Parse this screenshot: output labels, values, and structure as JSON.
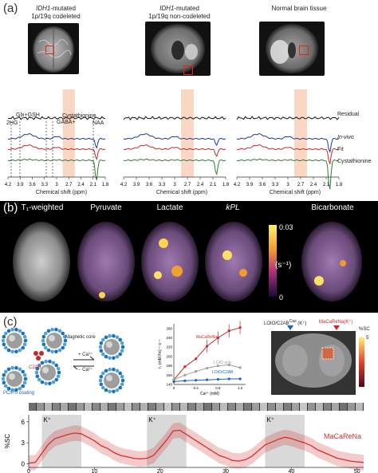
{
  "panel_labels": {
    "a": "(a)",
    "b": "(b)",
    "c": "(c)"
  },
  "a": {
    "titles": [
      {
        "line1_italic": "IDH1",
        "line1_rest": "-mutated",
        "line2": "1p/19q codeleted"
      },
      {
        "line1_italic": "IDH1",
        "line1_rest": "-mutated",
        "line2": "1p/19q non-codeleted"
      },
      {
        "line1_italic": "",
        "line1_rest": "Normal brain tissue",
        "line2": ""
      }
    ],
    "peak_labels": {
      "glx_gsh": "Glx+GSH",
      "cystathionine": "Cystathionine",
      "gaba": "GABA+",
      "twohg": "2HG",
      "naa": "NAA"
    },
    "legend": {
      "residual": "Residual",
      "invivo": "In-vivo",
      "fit": "Fit",
      "cysta": "Cystathionine"
    },
    "xaxis_title": "Chemical shift (ppm)",
    "ticks": [
      "4.2",
      "3.9",
      "3.6",
      "3.3",
      "3",
      "2.7",
      "2.4",
      "2.1",
      "1.8"
    ],
    "colors": {
      "invivo": "#1f3a8a",
      "fit": "#c62828",
      "cysta": "#2e7d32",
      "highlight": "#f7c6a8"
    }
  },
  "b": {
    "labels": [
      "T₁-weighted",
      "Pyruvate",
      "Lactate",
      "kPL",
      "Bicarbonate"
    ],
    "colorbar": {
      "top": "0.03",
      "unit": "(s⁻¹)",
      "bottom": "0"
    }
  },
  "c": {
    "schematic": {
      "magnetic_core": "Magnetic core",
      "c2ab": "C2AB",
      "plus_ca": "+ Ca²⁺",
      "minus_ca": "− Ca²⁺",
      "coating": "PC/PS coating"
    },
    "mini_chart": {
      "series_labels": [
        "MaCaReNa",
        "LOIO only",
        "LOIO/C2AB"
      ],
      "xlabel": "Ca²⁺ (mM)",
      "ylabel": "r₂ (mM Fe)⁻¹ s⁻¹",
      "yticks": [
        "140",
        "160",
        "180",
        "200",
        "220",
        "240",
        "260"
      ],
      "xticks": [
        "0",
        "0.4",
        "0.8",
        "1.2"
      ]
    },
    "brain_labels": {
      "left": "LOIO/C2AB",
      "left_sup": "Cas",
      "left_sup2": "(K⁺)",
      "right": "MaCaReNa",
      "right_sup": "(K⁺)",
      "scale_top": "%SC",
      "scale_val": "5"
    },
    "timecourse": {
      "k_labels": [
        "K⁺",
        "K⁺",
        "K⁺"
      ],
      "series_label": "MaCaReNa",
      "ylabel": "%SC",
      "yticks": [
        "6",
        "3",
        "0"
      ],
      "xticks": [
        "0",
        "10",
        "20",
        "30",
        "40",
        "50"
      ],
      "color": "#d32f2f"
    }
  },
  "chart_data": [
    {
      "type": "line",
      "series": [
        {
          "name": "MaCaReNa",
          "x": [
            0,
            0.2,
            0.4,
            0.6,
            0.8,
            1.0,
            1.2
          ],
          "values": [
            150,
            178,
            195,
            222,
            240,
            255,
            262
          ]
        },
        {
          "name": "LOIO only",
          "x": [
            0,
            0.2,
            0.4,
            0.6,
            0.8,
            1.0,
            1.2
          ],
          "values": [
            150,
            160,
            168,
            175,
            180,
            182,
            176
          ]
        },
        {
          "name": "LOIO/C2AB",
          "x": [
            0,
            0.2,
            0.4,
            0.6,
            0.8,
            1.0,
            1.2
          ],
          "values": [
            146,
            148,
            149,
            150,
            151,
            152,
            152
          ]
        }
      ],
      "xlim": [
        0,
        1.3
      ],
      "ylim": [
        140,
        270
      ],
      "xlabel": "Ca²⁺ (mM)",
      "ylabel": "r₂ (mM Fe)⁻¹ s⁻¹"
    },
    {
      "type": "line",
      "series": [
        {
          "name": "MaCaReNa",
          "x": [
            0,
            1,
            2,
            3,
            4,
            5,
            6,
            7,
            8,
            9,
            10,
            11,
            12,
            13,
            14,
            15,
            16,
            17,
            18,
            19,
            20,
            21,
            22,
            23,
            24,
            25,
            26,
            27,
            28,
            29,
            30,
            31,
            32,
            33,
            34,
            35,
            36,
            37,
            38,
            39,
            40,
            41,
            42,
            43,
            44,
            45,
            46,
            47,
            48,
            49,
            50,
            51
          ],
          "values": [
            0.1,
            0.2,
            1.5,
            2.8,
            3.6,
            3.9,
            4.2,
            4.4,
            4.3,
            3.8,
            3.3,
            2.6,
            2.2,
            1.6,
            1.2,
            1.0,
            0.8,
            0.7,
            0.8,
            1.2,
            2.3,
            3.4,
            4.7,
            4.8,
            4.2,
            3.6,
            3.0,
            2.4,
            1.8,
            1.2,
            0.9,
            0.5,
            0.4,
            0.6,
            1.1,
            1.9,
            2.7,
            3.1,
            3.5,
            3.8,
            3.6,
            3.3,
            3.0,
            2.6,
            2.0,
            1.6,
            1.2,
            0.8,
            0.6,
            0.4,
            0.3,
            0.2
          ]
        }
      ],
      "k_intervals": [
        [
          2,
          8
        ],
        [
          18,
          24
        ],
        [
          36,
          42
        ]
      ],
      "xlim": [
        0,
        51
      ],
      "ylim": [
        -0.5,
        7
      ],
      "ylabel": "%SC"
    }
  ]
}
